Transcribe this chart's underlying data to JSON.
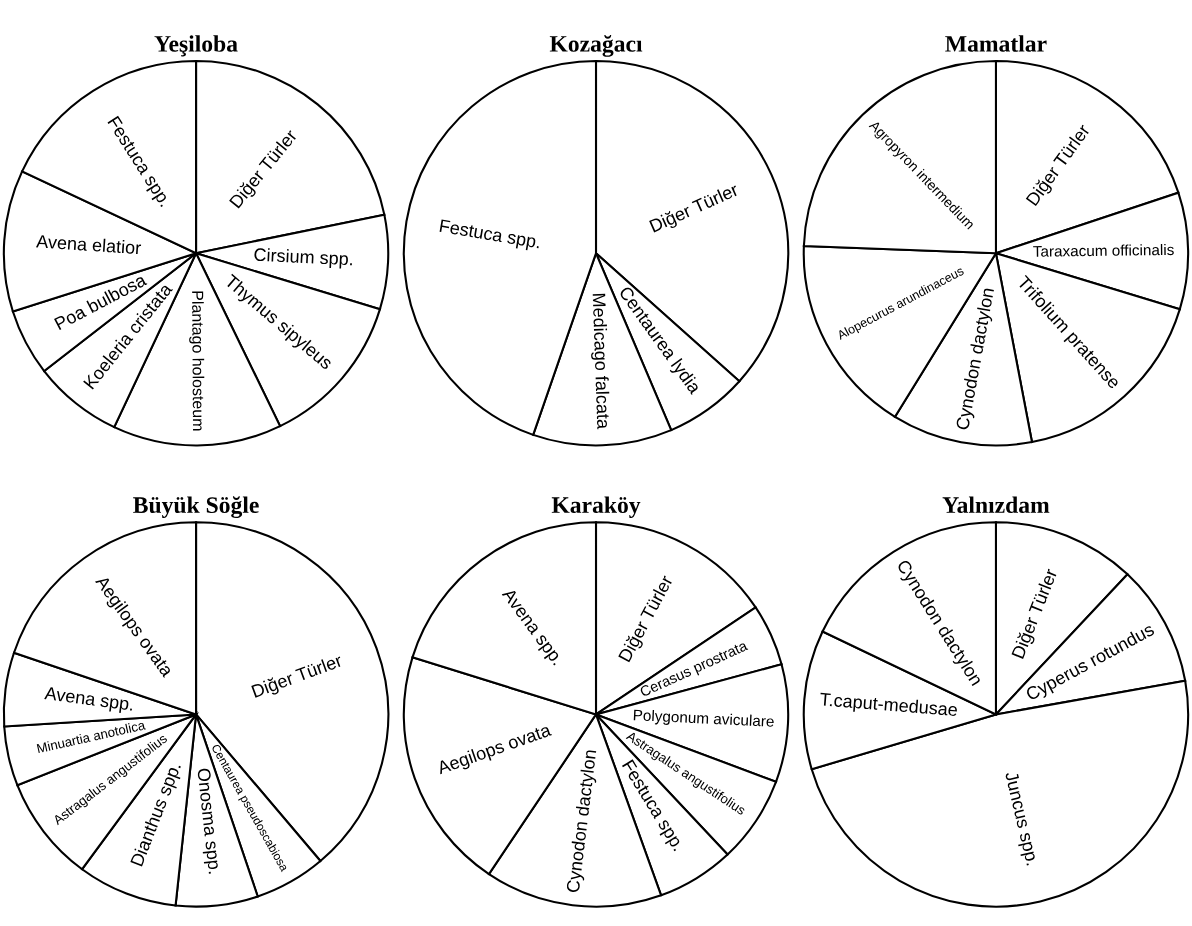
{
  "chart_data": [
    {
      "type": "pie",
      "title": "Yeşiloba",
      "categories": [
        "Diğer Türler",
        "Cirsium spp.",
        "Thymus sipyleus",
        "Plantago holosteum",
        "Koeleria cristata",
        "Poa bulbosa",
        "Avena elatior",
        "Festuca spp."
      ],
      "values": [
        21.8,
        7.9,
        13.1,
        14.2,
        7.5,
        5.6,
        11.9,
        18.0
      ],
      "colors": [
        "#ffffff",
        "#ffffff",
        "#ffffff",
        "#ffffff",
        "#ffffff",
        "#ffffff",
        "#ffffff",
        "#ffffff"
      ]
    },
    {
      "type": "pie",
      "title": "Kozağacı",
      "categories": [
        "Diğer Türler",
        "Centaurea lydia",
        "Medicago falcata",
        "Festuca spp."
      ],
      "values": [
        36.6,
        7.0,
        11.7,
        44.7
      ],
      "colors": [
        "#ffffff",
        "#ffffff",
        "#ffffff",
        "#ffffff"
      ]
    },
    {
      "type": "pie",
      "title": "Mamatlar",
      "categories": [
        "Diğer Türler",
        "Taraxacum officinalis",
        "Trifolium pratense",
        "Cynodon dactylon",
        "Alopecurus arundinaceus",
        "Agropyron intermedium"
      ],
      "values": [
        19.9,
        9.8,
        17.3,
        11.8,
        16.8,
        24.4
      ],
      "colors": [
        "#ffffff",
        "#ffffff",
        "#ffffff",
        "#ffffff",
        "#ffffff",
        "#ffffff"
      ]
    },
    {
      "type": "pie",
      "title": "Büyük Söğle",
      "categories": [
        "Diğer Türler",
        "Centaurea pseudoscabiosa",
        "Onosma spp.",
        "Dianthus spp.",
        "Astragalus angustifolius",
        "Minuartia anotolica",
        "Avena spp.",
        "Aegilops ovata"
      ],
      "values": [
        38.8,
        6.0,
        6.9,
        8.4,
        8.9,
        5.0,
        6.2,
        19.8
      ],
      "colors": [
        "#ffffff",
        "#ffffff",
        "#ffffff",
        "#ffffff",
        "#ffffff",
        "#ffffff",
        "#ffffff",
        "#ffffff"
      ]
    },
    {
      "type": "pie",
      "title": "Karaköy",
      "categories": [
        "Diğer Türler",
        "Cerasus prostrata",
        "Polygonum aviculare",
        "Astragalus angustifolius",
        "Festuca spp.",
        "Cynodon dactylon",
        "Aegilops ovata",
        "Avena spp."
      ],
      "values": [
        15.6,
        5.2,
        9.9,
        7.3,
        6.5,
        14.9,
        20.4,
        20.2
      ],
      "colors": [
        "#ffffff",
        "#ffffff",
        "#ffffff",
        "#ffffff",
        "#ffffff",
        "#ffffff",
        "#ffffff",
        "#ffffff"
      ]
    },
    {
      "type": "pie",
      "title": "Yalnızdam",
      "categories": [
        "Diğer Türler",
        "Cyperus rotundus",
        "Juncus spp.",
        "T.caput-medusae",
        "Cynodon dactylon"
      ],
      "values": [
        12.0,
        10.2,
        48.2,
        11.7,
        17.9
      ],
      "colors": [
        "#ffffff",
        "#ffffff",
        "#ffffff",
        "#ffffff",
        "#ffffff"
      ]
    }
  ]
}
